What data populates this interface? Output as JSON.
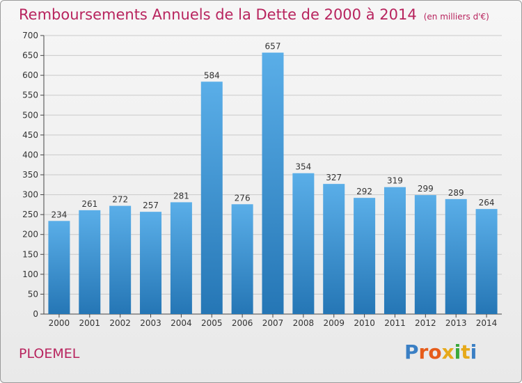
{
  "title": "Remboursements Annuels de la Dette de 2000 à 2014",
  "unit_note": "(en milliers d'€)",
  "commune": "PLOEMEL",
  "brand": [
    "P",
    "r",
    "o",
    "x",
    "i",
    "t",
    "i"
  ],
  "colors": {
    "title": "#b8245e",
    "bar_top": "#5aaee8",
    "bar_bottom": "#2576b5",
    "logo": [
      "#3a7fc4",
      "#e65c1a",
      "#e65c1a",
      "#e6a91a",
      "#3aa83a",
      "#e6a91a",
      "#3a7fc4"
    ]
  },
  "chart_data": {
    "type": "bar",
    "categories": [
      "2000",
      "2001",
      "2002",
      "2003",
      "2004",
      "2005",
      "2006",
      "2007",
      "2008",
      "2009",
      "2010",
      "2011",
      "2012",
      "2013",
      "2014"
    ],
    "values": [
      234,
      261,
      272,
      257,
      281,
      584,
      276,
      657,
      354,
      327,
      292,
      319,
      299,
      289,
      264
    ],
    "ylim": [
      0,
      700
    ],
    "yticks": [
      0,
      50,
      100,
      150,
      200,
      250,
      300,
      350,
      400,
      450,
      500,
      550,
      600,
      650,
      700
    ],
    "grid": true,
    "legend": "none"
  }
}
